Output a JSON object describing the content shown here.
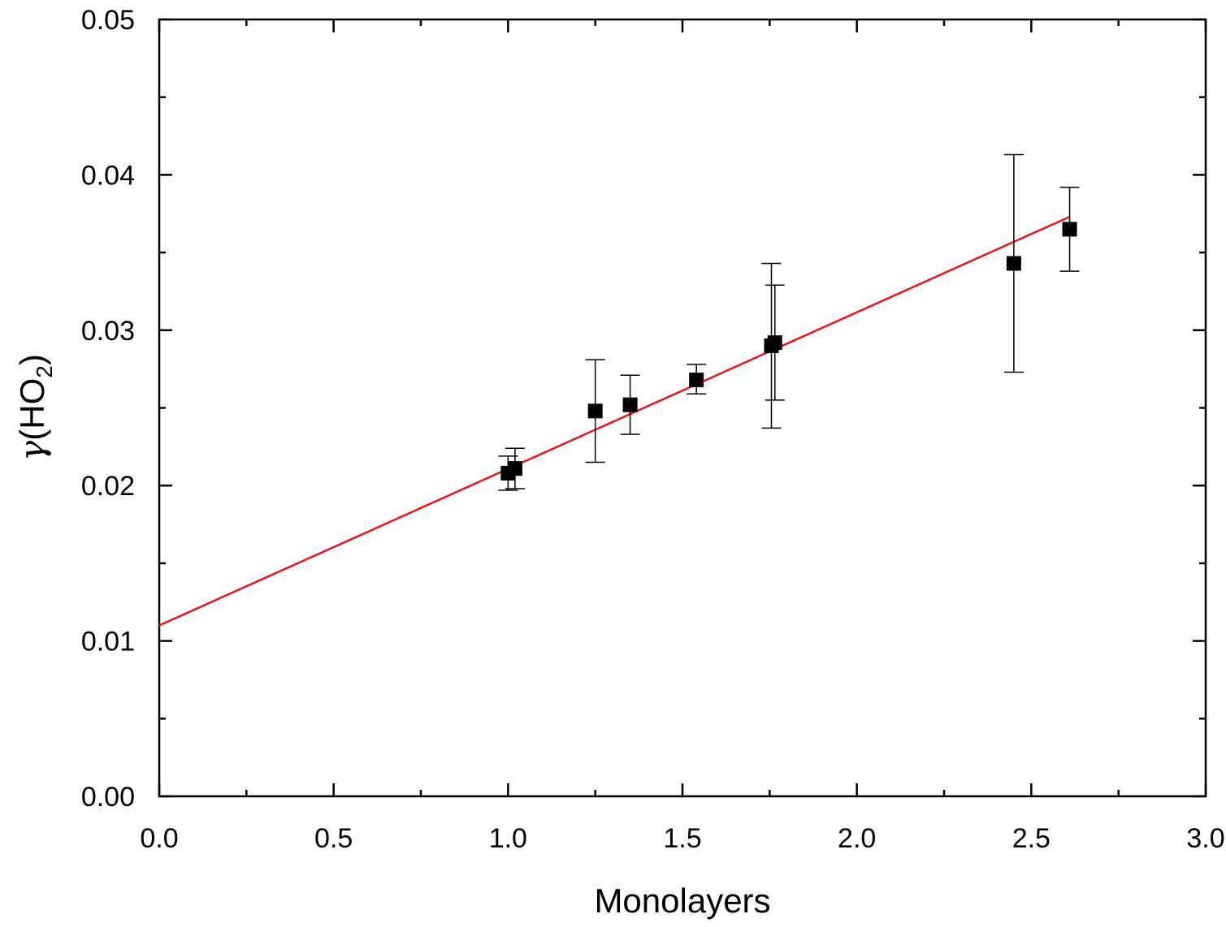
{
  "chart_data": {
    "type": "scatter",
    "title": "",
    "xlabel": "Monolayers",
    "ylabel": "HO",
    "ylabel_symbol": "γ",
    "ylabel_subscript": "2",
    "xlim": [
      0.0,
      3.0
    ],
    "ylim": [
      0.0,
      0.05
    ],
    "x_ticks": [
      "0.0",
      "0.5",
      "1.0",
      "1.5",
      "2.0",
      "2.5",
      "3.0"
    ],
    "y_ticks": [
      "0.00",
      "0.01",
      "0.02",
      "0.03",
      "0.04",
      "0.05"
    ],
    "grid": false,
    "marker_color": "#000000",
    "fit_color": "#e8141a",
    "points": [
      {
        "x": 1.0,
        "y": 0.0208,
        "err_low": 0.0197,
        "err_high": 0.0219
      },
      {
        "x": 1.02,
        "y": 0.0211,
        "err_low": 0.0198,
        "err_high": 0.0224
      },
      {
        "x": 1.25,
        "y": 0.0248,
        "err_low": 0.0215,
        "err_high": 0.0281
      },
      {
        "x": 1.35,
        "y": 0.0252,
        "err_low": 0.0233,
        "err_high": 0.0271
      },
      {
        "x": 1.54,
        "y": 0.0268,
        "err_low": 0.0259,
        "err_high": 0.0278
      },
      {
        "x": 1.755,
        "y": 0.029,
        "err_low": 0.0237,
        "err_high": 0.0343
      },
      {
        "x": 1.765,
        "y": 0.0292,
        "err_low": 0.0255,
        "err_high": 0.0329
      },
      {
        "x": 2.45,
        "y": 0.0343,
        "err_low": 0.0273,
        "err_high": 0.0413
      },
      {
        "x": 2.61,
        "y": 0.0365,
        "err_low": 0.0338,
        "err_high": 0.0392
      }
    ],
    "fit_line": {
      "x": [
        0.0,
        2.61
      ],
      "y": [
        0.011,
        0.0373
      ]
    }
  }
}
